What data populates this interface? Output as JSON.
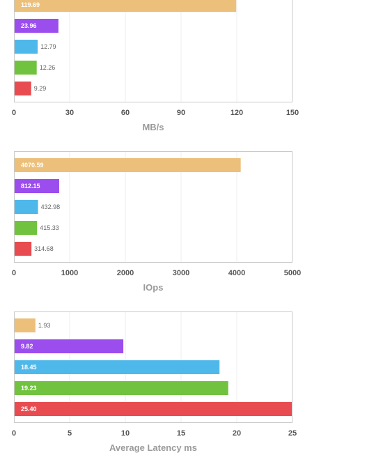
{
  "chart_data": [
    {
      "type": "bar",
      "orientation": "horizontal",
      "xlabel": "MB/s",
      "xlim": [
        0,
        150
      ],
      "xticks": [
        "0",
        "30",
        "60",
        "90",
        "120",
        "150"
      ],
      "grid": true,
      "bars": [
        {
          "value": 119.69,
          "label": "119.69",
          "color": "#ecc07a"
        },
        {
          "value": 23.96,
          "label": "23.96",
          "color": "#9b4ded"
        },
        {
          "value": 12.79,
          "label": "12.79",
          "color": "#4fb8ea"
        },
        {
          "value": 12.26,
          "label": "12.26",
          "color": "#71c23f"
        },
        {
          "value": 9.29,
          "label": "9.29",
          "color": "#e84c50"
        }
      ]
    },
    {
      "type": "bar",
      "orientation": "horizontal",
      "xlabel": "IOps",
      "xlim": [
        0,
        5000
      ],
      "xticks": [
        "0",
        "1000",
        "2000",
        "3000",
        "4000",
        "5000"
      ],
      "grid": true,
      "bars": [
        {
          "value": 4070.59,
          "label": "4070.59",
          "color": "#ecc07a"
        },
        {
          "value": 812.15,
          "label": "812.15",
          "color": "#9b4ded"
        },
        {
          "value": 432.98,
          "label": "432.98",
          "color": "#4fb8ea"
        },
        {
          "value": 415.33,
          "label": "415.33",
          "color": "#71c23f"
        },
        {
          "value": 314.68,
          "label": "314.68",
          "color": "#e84c50"
        }
      ]
    },
    {
      "type": "bar",
      "orientation": "horizontal",
      "xlabel": "Average Latency ms",
      "xlim": [
        0,
        25
      ],
      "xticks": [
        "0",
        "5",
        "10",
        "15",
        "20",
        "25"
      ],
      "grid": true,
      "bars": [
        {
          "value": 1.93,
          "label": "1.93",
          "color": "#ecc07a"
        },
        {
          "value": 9.82,
          "label": "9.82",
          "color": "#9b4ded"
        },
        {
          "value": 18.45,
          "label": "18.45",
          "color": "#4fb8ea"
        },
        {
          "value": 19.23,
          "label": "19.23",
          "color": "#71c23f"
        },
        {
          "value": 25.4,
          "label": "25.40",
          "color": "#e84c50"
        }
      ]
    }
  ]
}
